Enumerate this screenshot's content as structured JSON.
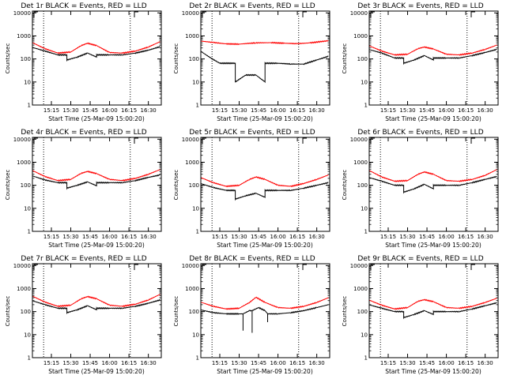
{
  "colors": {
    "events": "#000000",
    "lld": "#ff0000",
    "background": "#ffffff",
    "axes": "#000000"
  },
  "chart_data": [
    {
      "type": "line",
      "title": "Det 1r BLACK = Events, RED = LLD",
      "xlabel": "Start Time (25-Mar-09 15:00:20)",
      "ylabel": "Counts/sec",
      "x": [
        "15:15",
        "15:30",
        "15:45",
        "16:00",
        "16:15",
        "16:30"
      ],
      "xlim": [
        "15:00:20",
        "16:40:00"
      ],
      "ylim": [
        1,
        12000
      ],
      "yscale": "log",
      "yticks": [
        "1",
        "10",
        "100",
        "1000",
        "10000"
      ],
      "dotted_lines": [
        "15:09",
        "16:16"
      ],
      "series": [
        {
          "name": "Events",
          "color": "#000000",
          "x": [
            "15:00",
            "15:10",
            "15:20",
            "15:27",
            "15:27",
            "15:35",
            "15:43",
            "15:50",
            "15:50",
            "16:00",
            "16:10",
            "16:20",
            "16:30",
            "16:39"
          ],
          "values": [
            320,
            220,
            150,
            150,
            90,
            120,
            180,
            120,
            150,
            150,
            150,
            180,
            240,
            340
          ]
        },
        {
          "name": "LLD",
          "color": "#ff0000",
          "x": [
            "15:00",
            "15:10",
            "15:20",
            "15:30",
            "15:38",
            "15:43",
            "15:50",
            "16:00",
            "16:10",
            "16:20",
            "16:30",
            "16:39"
          ],
          "values": [
            520,
            280,
            180,
            200,
            380,
            480,
            380,
            190,
            180,
            220,
            330,
            560
          ]
        }
      ]
    },
    {
      "type": "line",
      "title": "Det 2r BLACK = Events, RED = LLD",
      "xlabel": "Start Time (25-Mar-09 15:00:20)",
      "ylabel": "Counts/sec",
      "x": [
        "15:15",
        "15:30",
        "15:45",
        "16:00",
        "16:15",
        "16:30"
      ],
      "xlim": [
        "15:00:20",
        "16:40:00"
      ],
      "ylim": [
        1,
        12000
      ],
      "yscale": "log",
      "yticks": [
        "1",
        "10",
        "100",
        "1000",
        "10000"
      ],
      "dotted_lines": [
        "15:09",
        "16:16"
      ],
      "series": [
        {
          "name": "Events",
          "color": "#000000",
          "x": [
            "15:00",
            "15:08",
            "15:15",
            "15:27",
            "15:27",
            "15:35",
            "15:43",
            "15:50",
            "15:50",
            "16:00",
            "16:10",
            "16:20",
            "16:30",
            "16:39"
          ],
          "values": [
            220,
            110,
            65,
            65,
            10,
            20,
            20,
            10,
            65,
            65,
            60,
            60,
            90,
            130
          ]
        },
        {
          "name": "LLD",
          "color": "#ff0000",
          "x": [
            "15:00",
            "15:10",
            "15:20",
            "15:30",
            "15:43",
            "15:55",
            "16:05",
            "16:15",
            "16:25",
            "16:39"
          ],
          "values": [
            600,
            520,
            450,
            440,
            500,
            510,
            480,
            460,
            500,
            620
          ]
        }
      ]
    },
    {
      "type": "line",
      "title": "Det 3r BLACK = Events, RED = LLD",
      "xlabel": "Start Time (25-Mar-09 15:00:20)",
      "ylabel": "Counts/sec",
      "x": [
        "15:15",
        "15:30",
        "15:45",
        "16:00",
        "16:15",
        "16:30"
      ],
      "xlim": [
        "15:00:20",
        "16:40:00"
      ],
      "ylim": [
        1,
        12000
      ],
      "yscale": "log",
      "yticks": [
        "1",
        "10",
        "100",
        "1000",
        "10000"
      ],
      "dotted_lines": [
        "15:09",
        "16:16"
      ],
      "series": [
        {
          "name": "Events",
          "color": "#000000",
          "x": [
            "15:00",
            "15:10",
            "15:20",
            "15:27",
            "15:27",
            "15:35",
            "15:43",
            "15:50",
            "15:50",
            "16:00",
            "16:10",
            "16:20",
            "16:30",
            "16:39"
          ],
          "values": [
            260,
            180,
            110,
            110,
            65,
            90,
            140,
            90,
            110,
            110,
            110,
            140,
            190,
            260
          ]
        },
        {
          "name": "LLD",
          "color": "#ff0000",
          "x": [
            "15:00",
            "15:10",
            "15:20",
            "15:30",
            "15:38",
            "15:43",
            "15:50",
            "16:00",
            "16:10",
            "16:20",
            "16:30",
            "16:39"
          ],
          "values": [
            380,
            220,
            150,
            160,
            280,
            330,
            270,
            160,
            150,
            180,
            260,
            400
          ]
        }
      ]
    },
    {
      "type": "line",
      "title": "Det 4r BLACK = Events, RED = LLD",
      "xlabel": "Start Time (25-Mar-09 15:00:20)",
      "ylabel": "Counts/sec",
      "x": [
        "15:15",
        "15:30",
        "15:45",
        "16:00",
        "16:15",
        "16:30"
      ],
      "xlim": [
        "15:00:20",
        "16:40:00"
      ],
      "ylim": [
        1,
        12000
      ],
      "yscale": "log",
      "yticks": [
        "1",
        "10",
        "100",
        "1000",
        "10000"
      ],
      "dotted_lines": [
        "15:09",
        "16:16"
      ],
      "series": [
        {
          "name": "Events",
          "color": "#000000",
          "x": [
            "15:00",
            "15:10",
            "15:20",
            "15:27",
            "15:27",
            "15:35",
            "15:43",
            "15:50",
            "15:50",
            "16:00",
            "16:10",
            "16:20",
            "16:30",
            "16:39"
          ],
          "values": [
            260,
            170,
            130,
            130,
            75,
            100,
            140,
            95,
            130,
            130,
            130,
            160,
            220,
            280
          ]
        },
        {
          "name": "LLD",
          "color": "#ff0000",
          "x": [
            "15:00",
            "15:10",
            "15:20",
            "15:30",
            "15:38",
            "15:43",
            "15:50",
            "16:00",
            "16:10",
            "16:20",
            "16:30",
            "16:39"
          ],
          "values": [
            450,
            240,
            160,
            180,
            330,
            400,
            320,
            180,
            160,
            200,
            300,
            480
          ]
        }
      ]
    },
    {
      "type": "line",
      "title": "Det 5r BLACK = Events, RED = LLD",
      "xlabel": "Start Time (25-Mar-09 15:00:20)",
      "ylabel": "Counts/sec",
      "x": [
        "15:15",
        "15:30",
        "15:45",
        "16:00",
        "16:15",
        "16:30"
      ],
      "xlim": [
        "15:00:20",
        "16:40:00"
      ],
      "ylim": [
        1,
        12000
      ],
      "yscale": "log",
      "yticks": [
        "1",
        "10",
        "100",
        "1000",
        "10000"
      ],
      "dotted_lines": [
        "15:09",
        "16:16"
      ],
      "series": [
        {
          "name": "Events",
          "color": "#000000",
          "x": [
            "15:00",
            "15:10",
            "15:20",
            "15:27",
            "15:27",
            "15:35",
            "15:43",
            "15:50",
            "15:50",
            "16:00",
            "16:10",
            "16:20",
            "16:30",
            "16:39"
          ],
          "values": [
            120,
            80,
            60,
            60,
            25,
            35,
            45,
            30,
            60,
            60,
            60,
            75,
            100,
            130
          ]
        },
        {
          "name": "LLD",
          "color": "#ff0000",
          "x": [
            "15:00",
            "15:10",
            "15:20",
            "15:30",
            "15:38",
            "15:43",
            "15:50",
            "16:00",
            "16:10",
            "16:20",
            "16:30",
            "16:39"
          ],
          "values": [
            220,
            130,
            90,
            100,
            180,
            230,
            180,
            100,
            90,
            120,
            180,
            280
          ]
        }
      ]
    },
    {
      "type": "line",
      "title": "Det 6r BLACK = Events, RED = LLD",
      "xlabel": "Start Time (25-Mar-09 15:00:20)",
      "ylabel": "Counts/sec",
      "x": [
        "15:15",
        "15:30",
        "15:45",
        "16:00",
        "16:15",
        "16:30"
      ],
      "xlim": [
        "15:00:20",
        "16:40:00"
      ],
      "ylim": [
        1,
        12000
      ],
      "yscale": "log",
      "yticks": [
        "1",
        "10",
        "100",
        "1000",
        "10000"
      ],
      "dotted_lines": [
        "15:09",
        "16:16"
      ],
      "series": [
        {
          "name": "Events",
          "color": "#000000",
          "x": [
            "15:00",
            "15:10",
            "15:20",
            "15:27",
            "15:27",
            "15:35",
            "15:43",
            "15:50",
            "15:50",
            "16:00",
            "16:10",
            "16:20",
            "16:30",
            "16:39"
          ],
          "values": [
            220,
            150,
            100,
            100,
            50,
            70,
            110,
            70,
            100,
            100,
            100,
            130,
            180,
            240
          ]
        },
        {
          "name": "LLD",
          "color": "#ff0000",
          "x": [
            "15:00",
            "15:10",
            "15:20",
            "15:30",
            "15:38",
            "15:43",
            "15:50",
            "16:00",
            "16:10",
            "16:20",
            "16:30",
            "16:39"
          ],
          "values": [
            450,
            230,
            150,
            160,
            300,
            380,
            300,
            160,
            150,
            180,
            270,
            480
          ]
        }
      ]
    },
    {
      "type": "line",
      "title": "Det 7r BLACK = Events, RED = LLD",
      "xlabel": "Start Time (25-Mar-09 15:00:20)",
      "ylabel": "Counts/sec",
      "x": [
        "15:15",
        "15:30",
        "15:45",
        "16:00",
        "16:15",
        "16:30"
      ],
      "xlim": [
        "15:00:20",
        "16:40:00"
      ],
      "ylim": [
        1,
        12000
      ],
      "yscale": "log",
      "yticks": [
        "1",
        "10",
        "100",
        "1000",
        "10000"
      ],
      "dotted_lines": [
        "15:09",
        "16:16"
      ],
      "series": [
        {
          "name": "Events",
          "color": "#000000",
          "x": [
            "15:00",
            "15:10",
            "15:20",
            "15:27",
            "15:27",
            "15:35",
            "15:43",
            "15:50",
            "15:50",
            "16:00",
            "16:10",
            "16:20",
            "16:30",
            "16:39"
          ],
          "values": [
            300,
            200,
            140,
            140,
            90,
            120,
            180,
            120,
            140,
            140,
            140,
            170,
            230,
            320
          ]
        },
        {
          "name": "LLD",
          "color": "#ff0000",
          "x": [
            "15:00",
            "15:10",
            "15:20",
            "15:30",
            "15:38",
            "15:43",
            "15:50",
            "16:00",
            "16:10",
            "16:20",
            "16:30",
            "16:39"
          ],
          "values": [
            480,
            260,
            170,
            190,
            360,
            450,
            360,
            190,
            170,
            210,
            320,
            560
          ]
        }
      ]
    },
    {
      "type": "line",
      "title": "Det 8r BLACK = Events, RED = LLD",
      "xlabel": "Start Time (25-Mar-09 15:00:20)",
      "ylabel": "Counts/sec",
      "x": [
        "15:15",
        "15:30",
        "15:45",
        "16:00",
        "16:15",
        "16:30"
      ],
      "xlim": [
        "15:00:20",
        "16:40:00"
      ],
      "ylim": [
        1,
        12000
      ],
      "yscale": "log",
      "yticks": [
        "1",
        "10",
        "100",
        "1000",
        "10000"
      ],
      "dotted_lines": [
        "15:09",
        "16:16"
      ],
      "series": [
        {
          "name": "Events",
          "color": "#000000",
          "x": [
            "15:00",
            "15:10",
            "15:20",
            "15:30",
            "15:33",
            "15:33",
            "15:33",
            "15:38",
            "15:40",
            "15:40",
            "15:40",
            "15:45",
            "15:50",
            "15:52",
            "15:52",
            "15:52",
            "16:00",
            "16:10",
            "16:20",
            "16:30",
            "16:39"
          ],
          "values": [
            120,
            90,
            80,
            80,
            80,
            15,
            80,
            110,
            110,
            12,
            110,
            150,
            110,
            80,
            35,
            80,
            80,
            90,
            110,
            150,
            200
          ]
        },
        {
          "name": "LLD",
          "color": "#ff0000",
          "x": [
            "15:00",
            "15:10",
            "15:20",
            "15:30",
            "15:38",
            "15:43",
            "15:50",
            "16:00",
            "16:10",
            "16:20",
            "16:30",
            "16:39"
          ],
          "values": [
            260,
            170,
            130,
            140,
            250,
            420,
            250,
            150,
            140,
            170,
            250,
            400
          ]
        }
      ]
    },
    {
      "type": "line",
      "title": "Det 9r BLACK = Events, RED = LLD",
      "xlabel": "Start Time (25-Mar-09 15:00:20)",
      "ylabel": "Counts/sec",
      "x": [
        "15:15",
        "15:30",
        "15:45",
        "16:00",
        "16:15",
        "16:30"
      ],
      "xlim": [
        "15:00:20",
        "16:40:00"
      ],
      "ylim": [
        1,
        12000
      ],
      "yscale": "log",
      "yticks": [
        "1",
        "10",
        "100",
        "1000",
        "10000"
      ],
      "dotted_lines": [
        "15:09",
        "16:16"
      ],
      "series": [
        {
          "name": "Events",
          "color": "#000000",
          "x": [
            "15:00",
            "15:10",
            "15:20",
            "15:27",
            "15:27",
            "15:35",
            "15:43",
            "15:50",
            "15:50",
            "16:00",
            "16:10",
            "16:20",
            "16:30",
            "16:39"
          ],
          "values": [
            200,
            140,
            100,
            100,
            55,
            75,
            110,
            75,
            100,
            100,
            100,
            130,
            180,
            240
          ]
        },
        {
          "name": "LLD",
          "color": "#ff0000",
          "x": [
            "15:00",
            "15:10",
            "15:20",
            "15:30",
            "15:38",
            "15:43",
            "15:50",
            "16:00",
            "16:10",
            "16:20",
            "16:30",
            "16:39"
          ],
          "values": [
            320,
            190,
            130,
            150,
            280,
            330,
            270,
            150,
            140,
            170,
            250,
            380
          ]
        }
      ]
    }
  ]
}
